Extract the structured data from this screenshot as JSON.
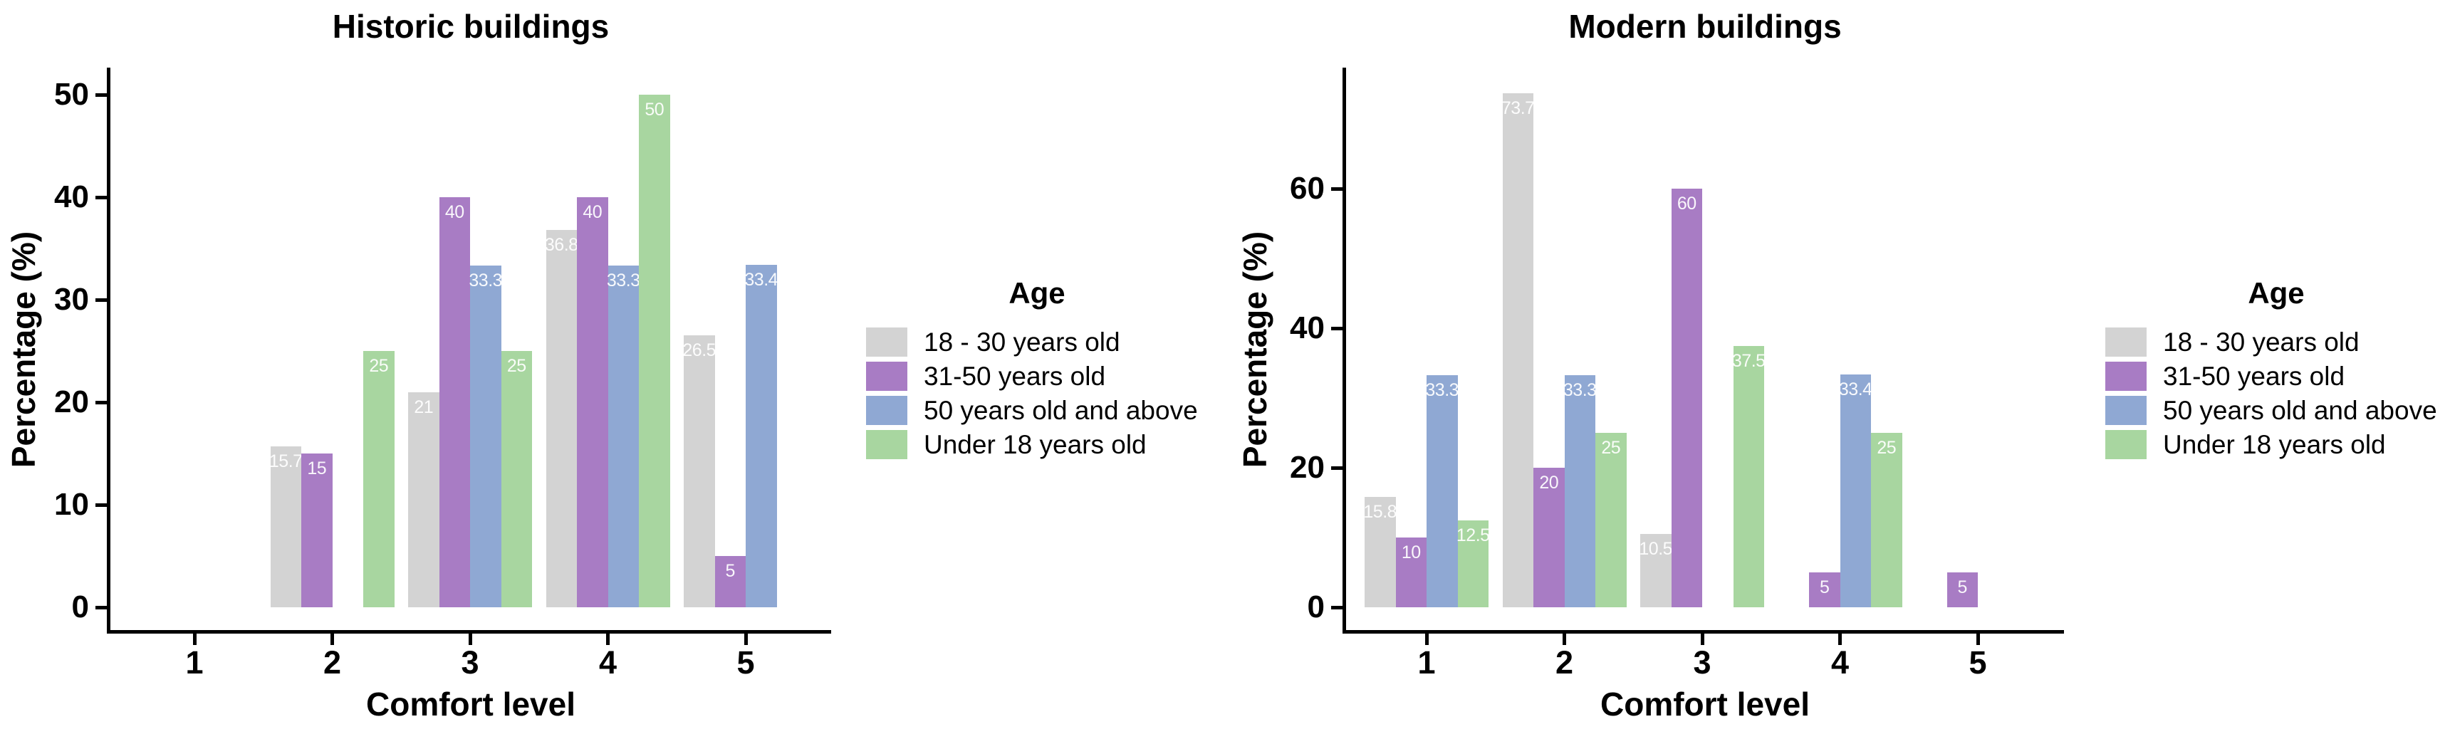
{
  "background_color": "#ffffff",
  "text_color": "#000000",
  "bar_label_color": "#ffffff",
  "chart_data": [
    {
      "type": "bar",
      "title": "Historic buildings",
      "xlabel": "Comfort level",
      "ylabel": "Percentage (%)",
      "categories": [
        "1",
        "2",
        "3",
        "4",
        "5"
      ],
      "yticks": [
        0,
        10,
        20,
        30,
        40,
        50
      ],
      "ylim": [
        0,
        53
      ],
      "grid": "off",
      "legend_position": "right",
      "legend_title": "Age",
      "series": [
        {
          "name": "18 - 30 years old",
          "color": "#D3D3D3",
          "values": [
            null,
            15.7,
            21,
            36.8,
            26.5
          ]
        },
        {
          "name": "31-50 years old",
          "color": "#A87CC4",
          "values": [
            null,
            15,
            40,
            40,
            5
          ]
        },
        {
          "name": "50 years old and above",
          "color": "#8FA8D3",
          "values": [
            null,
            null,
            33.3,
            33.3,
            33.4
          ]
        },
        {
          "name": "Under 18 years old",
          "color": "#A8D6A0",
          "values": [
            null,
            25,
            25,
            50,
            null
          ]
        }
      ]
    },
    {
      "type": "bar",
      "title": "Modern buildings",
      "xlabel": "Comfort level",
      "ylabel": "Percentage (%)",
      "categories": [
        "1",
        "2",
        "3",
        "4",
        "5"
      ],
      "yticks": [
        0,
        20,
        40,
        60
      ],
      "ylim": [
        0,
        77
      ],
      "grid": "off",
      "legend_position": "right",
      "legend_title": "Age",
      "series": [
        {
          "name": "18 - 30 years old",
          "color": "#D3D3D3",
          "values": [
            15.8,
            73.7,
            10.5,
            null,
            null
          ]
        },
        {
          "name": "31-50 years old",
          "color": "#A87CC4",
          "values": [
            10,
            20,
            60,
            5,
            5
          ]
        },
        {
          "name": "50 years old and above",
          "color": "#8FA8D3",
          "values": [
            33.3,
            33.3,
            null,
            33.4,
            null
          ]
        },
        {
          "name": "Under 18 years old",
          "color": "#A8D6A0",
          "values": [
            12.5,
            25,
            37.5,
            25,
            null
          ]
        }
      ]
    }
  ]
}
